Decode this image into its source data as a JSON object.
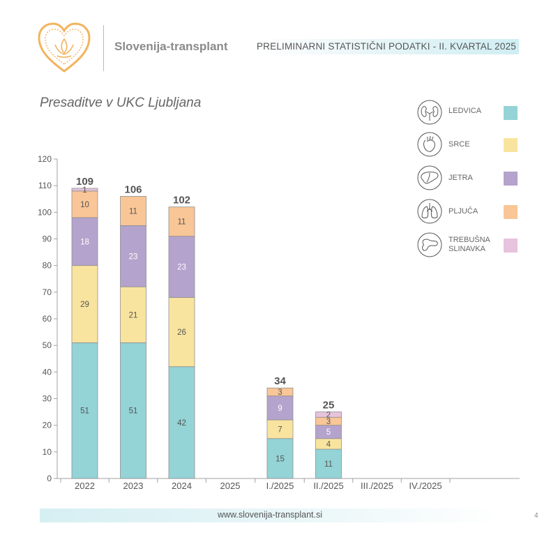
{
  "header": {
    "brand": "Slovenija-transplant",
    "title": "PRELIMINARNI STATISTIČNI PODATKI - II. KVARTAL 2025"
  },
  "chart_data": {
    "type": "bar",
    "stacked": true,
    "title": "Presaditve v UKC Ljubljana",
    "categories": [
      "2022",
      "2023",
      "2024",
      "2025",
      "I./2025",
      "II./2025",
      "III./2025",
      "IV./2025"
    ],
    "series": [
      {
        "name": "LEDVICA",
        "color": "#94d3d6",
        "values": [
          51,
          51,
          42,
          null,
          15,
          11,
          null,
          null
        ]
      },
      {
        "name": "SRCE",
        "color": "#f9e49f",
        "values": [
          29,
          21,
          26,
          null,
          7,
          4,
          null,
          null
        ]
      },
      {
        "name": "JETRA",
        "color": "#b4a3cc",
        "values": [
          18,
          23,
          23,
          null,
          9,
          5,
          null,
          null
        ]
      },
      {
        "name": "PLJUČA",
        "color": "#f9c697",
        "values": [
          10,
          11,
          11,
          null,
          3,
          3,
          null,
          null
        ]
      },
      {
        "name": "TREBUŠNA SLINAVKA",
        "color": "#e7c3dd",
        "values": [
          1,
          null,
          null,
          null,
          null,
          2,
          null,
          null
        ]
      }
    ],
    "totals": [
      109,
      106,
      102,
      null,
      34,
      25,
      null,
      null
    ],
    "ylim": [
      0,
      120
    ],
    "yticks": [
      0,
      10,
      20,
      30,
      40,
      50,
      60,
      70,
      80,
      90,
      100,
      110,
      120
    ],
    "legend_position": "top-right",
    "grid": false
  },
  "legend": [
    {
      "label": "LEDVICA",
      "icon": "kidney-icon",
      "color": "#94d3d6"
    },
    {
      "label": "SRCE",
      "icon": "heart-icon",
      "color": "#f9e49f"
    },
    {
      "label": "JETRA",
      "icon": "liver-icon",
      "color": "#b4a3cc"
    },
    {
      "label": "PLJUČA",
      "icon": "lungs-icon",
      "color": "#f9c697"
    },
    {
      "label": "TREBUŠNA SLINAVKA",
      "icon": "pancreas-icon",
      "color": "#e7c3dd"
    }
  ],
  "footer": {
    "url": "www.slovenija-transplant.si",
    "page": "4"
  }
}
